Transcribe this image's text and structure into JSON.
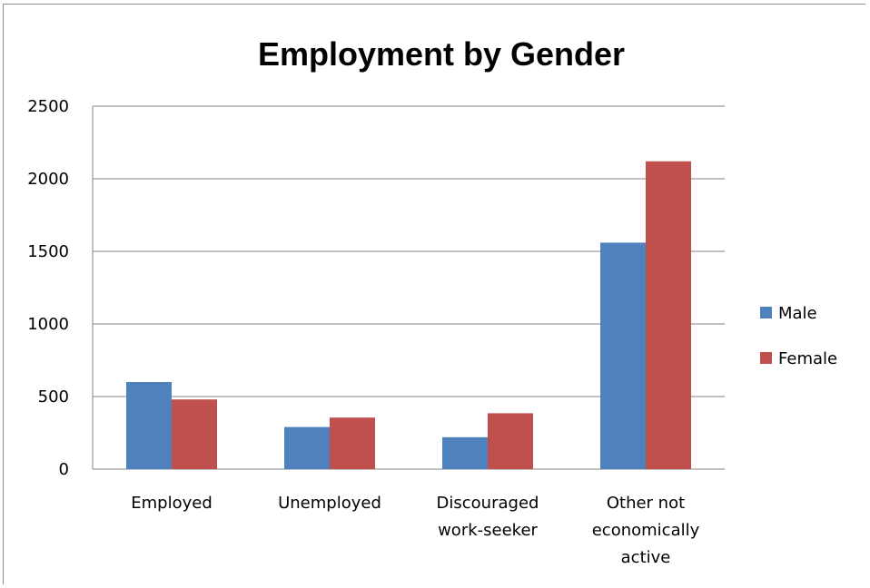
{
  "chart_data": {
    "type": "bar",
    "title": "Employment by Gender",
    "xlabel": "",
    "ylabel": "",
    "categories": [
      [
        "Employed"
      ],
      [
        "Unemployed"
      ],
      [
        "Discouraged",
        "work-seeker"
      ],
      [
        "Other not",
        "economically",
        "active"
      ]
    ],
    "series": [
      {
        "name": "Male",
        "color": "#4F81BD",
        "values": [
          600,
          290,
          220,
          1560
        ]
      },
      {
        "name": "Female",
        "color": "#C0504D",
        "values": [
          480,
          355,
          385,
          2120
        ]
      }
    ],
    "ylim": [
      0,
      2500
    ],
    "yticks": [
      0,
      500,
      1000,
      1500,
      2000,
      2500
    ],
    "grid": true,
    "legend_position": "right"
  }
}
